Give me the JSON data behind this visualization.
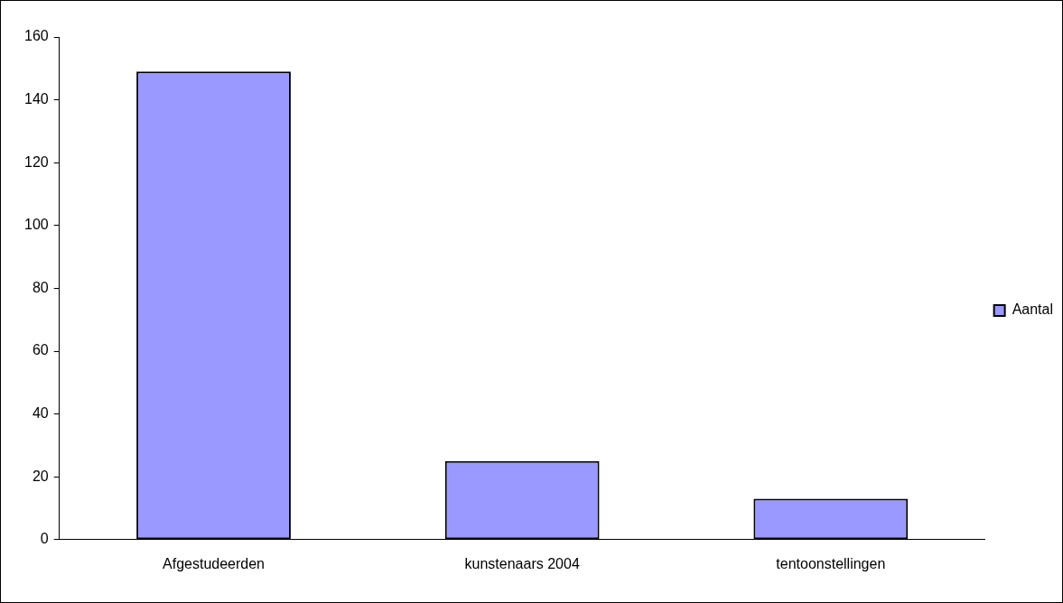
{
  "chart_data": {
    "type": "bar",
    "categories": [
      "Afgestudeerden",
      "kunstenaars 2004",
      "tentoonstellingen"
    ],
    "series": [
      {
        "name": "Aantal",
        "color": "#9999ff",
        "values": [
          149,
          25,
          13
        ]
      }
    ],
    "ylim": [
      0,
      160
    ],
    "yticks": [
      0,
      20,
      40,
      60,
      80,
      100,
      120,
      140,
      160
    ],
    "grid": false,
    "legend": "right"
  }
}
